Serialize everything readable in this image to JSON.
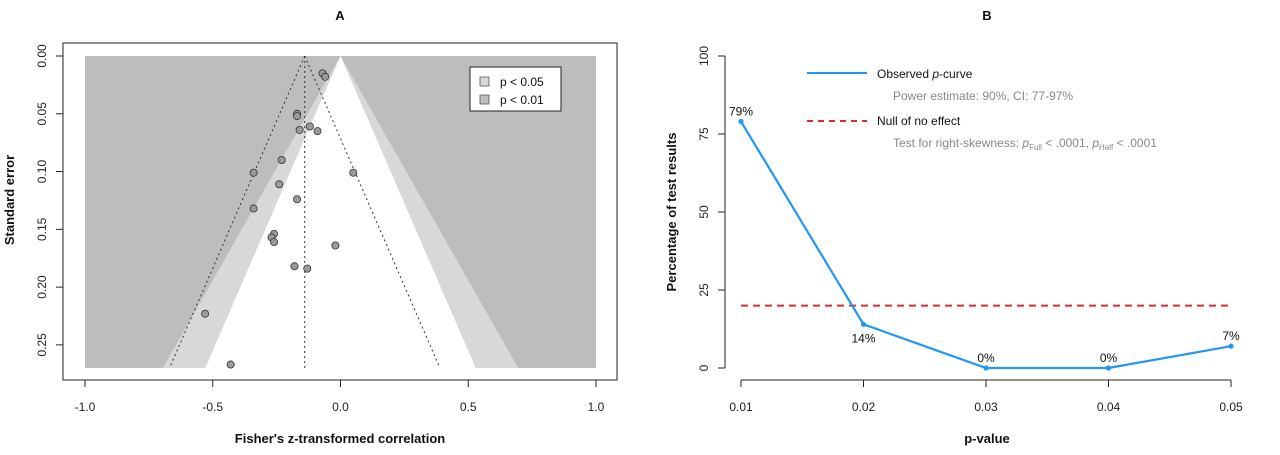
{
  "chart_data": [
    {
      "panel": "A",
      "type": "scatter",
      "title": "A",
      "xlabel": "Fisher's z-transformed correlation",
      "ylabel": "Standard error",
      "xlim": [
        -1.0,
        1.0
      ],
      "ylim": [
        0.0,
        0.27
      ],
      "y_reversed": true,
      "x_ticks": [
        "-1.0",
        "-0.5",
        "0.0",
        "0.5",
        "1.0"
      ],
      "y_ticks": [
        "0.00",
        "0.05",
        "0.10",
        "0.15",
        "0.20",
        "0.25"
      ],
      "legend": [
        {
          "label": "p < 0.05",
          "color": "#d8d8d8"
        },
        {
          "label": "p < 0.01",
          "color": "#bdbdbd"
        }
      ],
      "legend_position": "top-right",
      "colors": {
        "outer": "#bdbdbd",
        "middle": "#d8d8d8",
        "inner": "#ffffff",
        "point": "#9a9a9a"
      },
      "pooled_estimate": -0.14,
      "points": [
        {
          "x": -0.07,
          "y": 0.015
        },
        {
          "x": -0.06,
          "y": 0.018
        },
        {
          "x": -0.17,
          "y": 0.05
        },
        {
          "x": -0.17,
          "y": 0.052
        },
        {
          "x": -0.12,
          "y": 0.061
        },
        {
          "x": -0.16,
          "y": 0.064
        },
        {
          "x": -0.09,
          "y": 0.065
        },
        {
          "x": -0.23,
          "y": 0.09
        },
        {
          "x": -0.34,
          "y": 0.101
        },
        {
          "x": 0.05,
          "y": 0.101
        },
        {
          "x": -0.24,
          "y": 0.111
        },
        {
          "x": -0.17,
          "y": 0.124
        },
        {
          "x": -0.34,
          "y": 0.132
        },
        {
          "x": -0.26,
          "y": 0.154
        },
        {
          "x": -0.27,
          "y": 0.157
        },
        {
          "x": -0.26,
          "y": 0.161
        },
        {
          "x": -0.02,
          "y": 0.164
        },
        {
          "x": -0.18,
          "y": 0.182
        },
        {
          "x": -0.13,
          "y": 0.184
        },
        {
          "x": -0.53,
          "y": 0.223
        },
        {
          "x": -0.43,
          "y": 0.267
        }
      ]
    },
    {
      "panel": "B",
      "type": "line",
      "title": "B",
      "xlabel": "p-value",
      "ylabel": "Percentage of test results",
      "ylim": [
        0,
        100
      ],
      "x_ticks": [
        "0.01",
        "0.02",
        "0.03",
        "0.04",
        "0.05"
      ],
      "y_ticks": [
        "0",
        "25",
        "50",
        "75",
        "100"
      ],
      "legend_position": "top-left",
      "colors": {
        "observed": "#2196f3",
        "null": "#d32f2f"
      },
      "series": [
        {
          "name": "Observed p-curve",
          "x": [
            0.01,
            0.02,
            0.03,
            0.04,
            0.05
          ],
          "values": [
            79,
            14,
            0,
            0,
            7
          ],
          "labels": [
            "79%",
            "14%",
            "0%",
            "0%",
            "7%"
          ]
        },
        {
          "name": "Null of no effect",
          "x": [
            0.01,
            0.05
          ],
          "values": [
            20,
            20
          ]
        }
      ],
      "legend": {
        "observed_pre": "Observed ",
        "observed_italic": "p",
        "observed_post": "-curve",
        "power_text": "Power estimate: 90%, CI: 77-97%",
        "null_label": "Null of no effect",
        "skew_pre": "Test for right-skewness: ",
        "skew_p1": "p",
        "skew_sub1": "Full",
        "skew_mid": " < .0001, ",
        "skew_p2": "p",
        "skew_sub2": "Half",
        "skew_post": " < .0001"
      }
    }
  ]
}
